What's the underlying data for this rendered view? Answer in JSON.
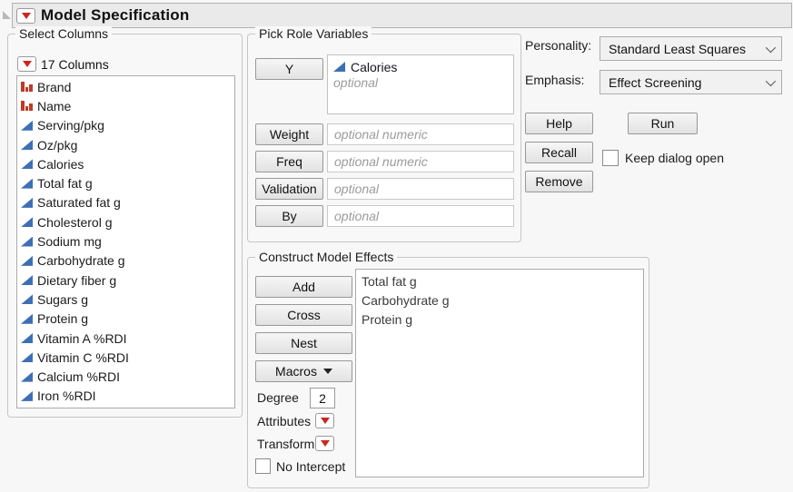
{
  "title_bar": {
    "title": "Model Specification"
  },
  "select_columns": {
    "label": "Select Columns",
    "header": "17 Columns",
    "columns": [
      {
        "name": "Brand",
        "type": "nominal"
      },
      {
        "name": "Name",
        "type": "nominal"
      },
      {
        "name": "Serving/pkg",
        "type": "continuous"
      },
      {
        "name": "Oz/pkg",
        "type": "continuous"
      },
      {
        "name": "Calories",
        "type": "continuous"
      },
      {
        "name": "Total fat g",
        "type": "continuous"
      },
      {
        "name": "Saturated fat g",
        "type": "continuous"
      },
      {
        "name": "Cholesterol g",
        "type": "continuous"
      },
      {
        "name": "Sodium mg",
        "type": "continuous"
      },
      {
        "name": "Carbohydrate g",
        "type": "continuous"
      },
      {
        "name": "Dietary fiber g",
        "type": "continuous"
      },
      {
        "name": "Sugars g",
        "type": "continuous"
      },
      {
        "name": "Protein g",
        "type": "continuous"
      },
      {
        "name": "Vitamin A %RDI",
        "type": "continuous"
      },
      {
        "name": "Vitamin C %RDI",
        "type": "continuous"
      },
      {
        "name": "Calcium %RDI",
        "type": "continuous"
      },
      {
        "name": "Iron %RDI",
        "type": "continuous"
      }
    ]
  },
  "pick_roles": {
    "label": "Pick Role Variables",
    "y_button": "Y",
    "y_assigned": {
      "name": "Calories",
      "type": "continuous"
    },
    "y_placeholder": "optional",
    "rows": [
      {
        "button": "Weight",
        "placeholder": "optional numeric"
      },
      {
        "button": "Freq",
        "placeholder": "optional numeric"
      },
      {
        "button": "Validation",
        "placeholder": "optional"
      },
      {
        "button": "By",
        "placeholder": "optional"
      }
    ]
  },
  "right_panel": {
    "personality_label": "Personality:",
    "personality_value": "Standard Least Squares",
    "emphasis_label": "Emphasis:",
    "emphasis_value": "Effect Screening",
    "help": "Help",
    "run": "Run",
    "recall": "Recall",
    "remove": "Remove",
    "keep_dialog_open": "Keep dialog open"
  },
  "model_effects": {
    "label": "Construct Model Effects",
    "add": "Add",
    "cross": "Cross",
    "nest": "Nest",
    "macros": "Macros",
    "degree_label": "Degree",
    "degree_value": "2",
    "attributes_label": "Attributes",
    "transform_label": "Transform",
    "no_intercept": "No Intercept",
    "effects": [
      "Total fat g",
      "Carbohydrate g",
      "Protein g"
    ]
  },
  "colors": {
    "accent_red": "#c8281e",
    "nominal_icon_red": "#bf3a28",
    "continuous_icon_blue": "#3d6fb4",
    "titlebar_gray": "#eaeaea"
  }
}
